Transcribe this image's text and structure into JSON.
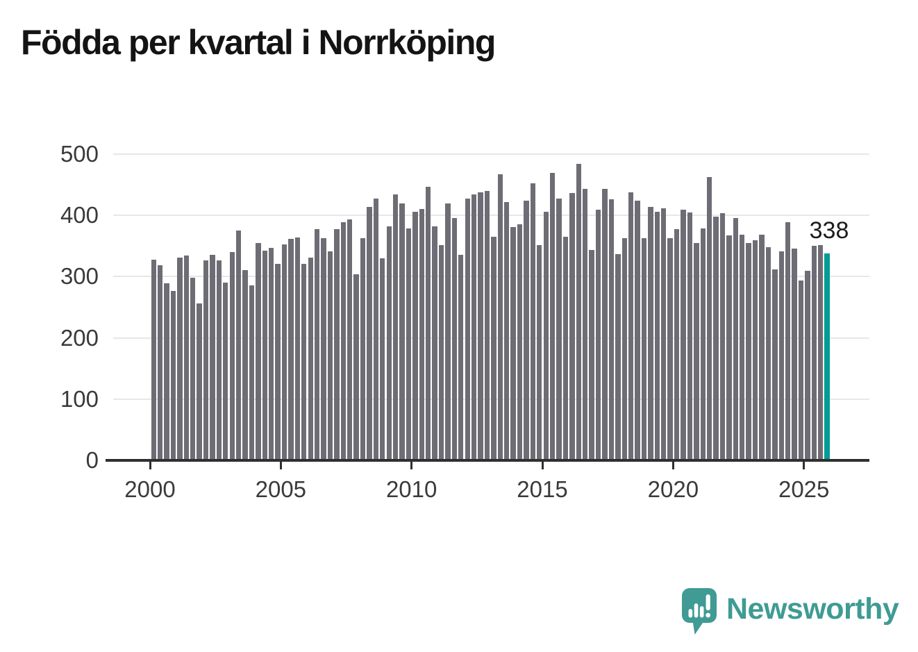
{
  "title": "Födda per kvartal i Norrköping",
  "chart_data": {
    "type": "bar",
    "title": "Födda per kvartal i Norrköping",
    "frequency": "quarterly",
    "x_start": "2000 Q1",
    "x_end": "2025 Q4",
    "values": [
      328,
      319,
      289,
      277,
      331,
      335,
      298,
      256,
      326,
      336,
      326,
      290,
      340,
      375,
      311,
      286,
      355,
      342,
      347,
      321,
      353,
      362,
      364,
      321,
      331,
      377,
      363,
      341,
      378,
      389,
      393,
      304,
      363,
      414,
      428,
      330,
      382,
      434,
      420,
      379,
      406,
      411,
      447,
      382,
      351,
      419,
      396,
      336,
      428,
      434,
      438,
      440,
      365,
      467,
      422,
      381,
      386,
      424,
      452,
      352,
      406,
      469,
      427,
      365,
      436,
      484,
      443,
      343,
      409,
      443,
      426,
      337,
      363,
      438,
      424,
      363,
      414,
      406,
      412,
      363,
      378,
      409,
      405,
      355,
      379,
      463,
      398,
      404,
      367,
      396,
      369,
      355,
      359,
      369,
      348,
      312,
      341,
      389,
      346,
      294,
      310,
      350,
      352,
      338
    ],
    "y_ticks": [
      0,
      100,
      200,
      300,
      400,
      500
    ],
    "ylim": [
      0,
      500
    ],
    "x_tick_labels": [
      "2000",
      "2005",
      "2010",
      "2015",
      "2020",
      "2025"
    ],
    "quarters_per_x_tick": 20,
    "grid": "horizontal",
    "legend": "none",
    "bar_color": "#6e6d75",
    "highlight": {
      "index": 103,
      "color": "#009c95",
      "value_label": "338"
    }
  },
  "annotation": {
    "last_value_label": "338"
  },
  "branding": {
    "logo_text": "Newsworthy",
    "logo_icon": "newsworthy-speech-bubble-bar-chart-icon",
    "logo_color": "#3f9b93"
  },
  "colors": {
    "background": "#ffffff",
    "title_text": "#141414",
    "axis_line": "#2f2f2f",
    "tick_label": "#3a3a3a",
    "gridline": "#e7e7e7",
    "bar": "#6e6d75",
    "highlight_bar": "#009c95",
    "annotation_text": "#1c1c1c"
  }
}
